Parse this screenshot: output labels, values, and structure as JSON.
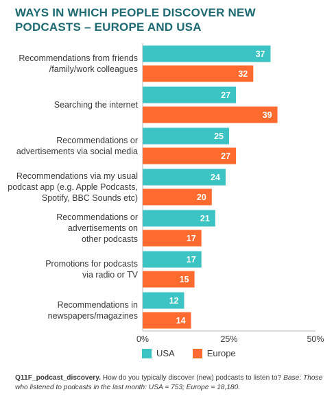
{
  "title": "WAYS IN WHICH PEOPLE DISCOVER NEW PODCASTS – EUROPE AND USA",
  "colors": {
    "usa": "#3cc3c3",
    "europe": "#ff6a2e",
    "title": "#1e6a72",
    "axis": "#bbbbbb"
  },
  "chart_data": {
    "type": "bar",
    "orientation": "horizontal",
    "categories": [
      [
        "Recommendations from friends",
        "/family/work colleagues"
      ],
      [
        "Searching the internet"
      ],
      [
        "Recommendations or",
        "advertisements via social media"
      ],
      [
        "Recommendations via my usual",
        "podcast app (e.g. Apple Podcasts,",
        "Spotify, BBC Sounds etc)"
      ],
      [
        "Recommendations or",
        "advertisements on",
        "other podcasts"
      ],
      [
        "Promotions for podcasts",
        "via radio or TV"
      ],
      [
        "Recommendations in",
        "newspapers/magazines"
      ]
    ],
    "series": [
      {
        "name": "USA",
        "values": [
          37,
          27,
          25,
          24,
          21,
          17,
          12
        ]
      },
      {
        "name": "Europe",
        "values": [
          32,
          39,
          27,
          20,
          17,
          15,
          14
        ]
      }
    ],
    "xlim": [
      0,
      50
    ],
    "xticks": [
      "0%",
      "25%",
      "50%"
    ],
    "legend": "bottom"
  },
  "legend": {
    "usa_label": "USA",
    "europe_label": "Europe"
  },
  "footnote": {
    "id": "Q11F_podcast_discovery.",
    "question": " How do you typically discover (new) podcasts to listen to? ",
    "base": "Base: Those who listened to podcasts in the last month: USA = 753; Europe = 18,180."
  }
}
